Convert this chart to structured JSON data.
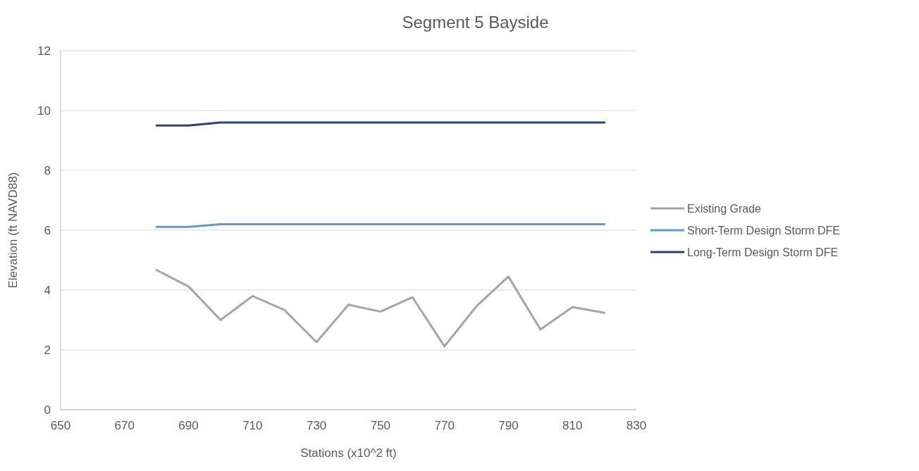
{
  "chart_data": {
    "type": "line",
    "title": "Segment 5 Bayside",
    "xlabel": "Stations (x10^2 ft)",
    "ylabel": "Elevation (ft NAVD88)",
    "x": [
      680,
      690,
      700,
      710,
      720,
      730,
      740,
      750,
      760,
      770,
      780,
      790,
      800,
      810,
      820
    ],
    "series": [
      {
        "name": "Existing Grade",
        "color": "#a5a5a5",
        "values": [
          4.67,
          4.12,
          3.0,
          3.8,
          3.33,
          2.26,
          3.51,
          3.28,
          3.76,
          2.12,
          3.46,
          4.45,
          2.68,
          3.43,
          3.24
        ]
      },
      {
        "name": "Short-Term Design Storm DFE",
        "color": "#5b9bd5",
        "values": [
          6.11,
          6.11,
          6.2,
          6.2,
          6.2,
          6.2,
          6.2,
          6.2,
          6.2,
          6.2,
          6.2,
          6.2,
          6.2,
          6.2,
          6.2
        ]
      },
      {
        "name": "Long-Term Design Storm DFE",
        "color": "#264478",
        "values": [
          9.5,
          9.5,
          9.6,
          9.6,
          9.6,
          9.6,
          9.6,
          9.6,
          9.6,
          9.6,
          9.6,
          9.6,
          9.6,
          9.6,
          9.6
        ]
      }
    ],
    "xlim": [
      650,
      830
    ],
    "xticks": [
      650,
      670,
      690,
      710,
      730,
      750,
      770,
      790,
      810,
      830
    ],
    "ylim": [
      0,
      12
    ],
    "yticks": [
      0,
      2,
      4,
      6,
      8,
      10,
      12
    ],
    "grid": "y",
    "legend": "right",
    "marker": "none",
    "line_style": "solid"
  }
}
